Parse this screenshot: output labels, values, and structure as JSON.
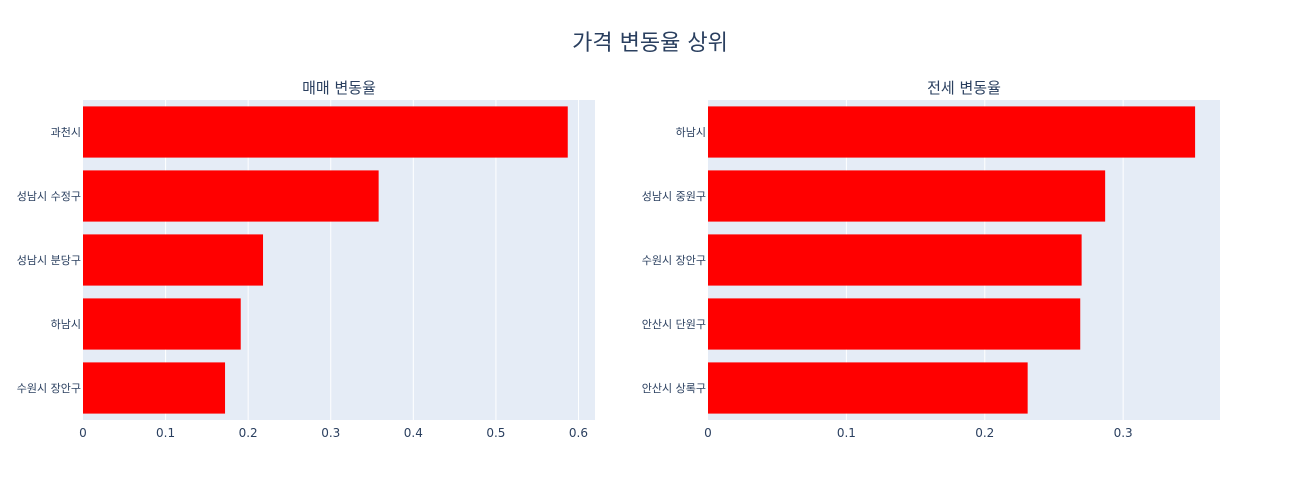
{
  "title": "가격 변동율 상위",
  "colors": {
    "bar": "#ff0000",
    "plot_bg": "#e5ecf6",
    "grid": "#ffffff",
    "text": "#2a3f5f"
  },
  "chart_data": [
    {
      "type": "bar",
      "orientation": "horizontal",
      "title": "매매 변동율",
      "categories": [
        "과천시",
        "성남시  수정구",
        "성남시  분당구",
        "하남시",
        "수원시  장안구"
      ],
      "values": [
        0.587,
        0.358,
        0.218,
        0.191,
        0.172
      ],
      "xlim": [
        0,
        0.62
      ],
      "xticks": [
        0,
        0.1,
        0.2,
        0.3,
        0.4,
        0.5,
        0.6
      ],
      "xtick_labels": [
        "0",
        "0.1",
        "0.2",
        "0.3",
        "0.4",
        "0.5",
        "0.6"
      ],
      "grid": true
    },
    {
      "type": "bar",
      "orientation": "horizontal",
      "title": "전세 변동율",
      "categories": [
        "하남시",
        "성남시  중원구",
        "수원시  장안구",
        "안산시 단원구",
        "안산시 상록구"
      ],
      "values": [
        0.352,
        0.287,
        0.27,
        0.269,
        0.231
      ],
      "xlim": [
        0,
        0.37
      ],
      "xticks": [
        0,
        0.1,
        0.2,
        0.3
      ],
      "xtick_labels": [
        "0",
        "0.1",
        "0.2",
        "0.3"
      ],
      "grid": true
    }
  ]
}
